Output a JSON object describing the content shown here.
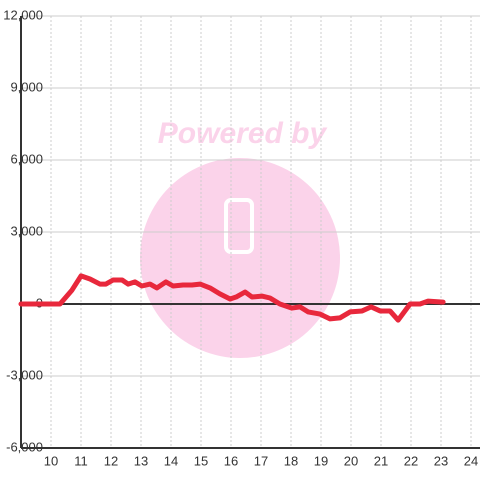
{
  "chart_data": {
    "type": "line",
    "watermark": "Powered by",
    "x": [
      9.0,
      10.3,
      10.7,
      11.0,
      11.3,
      11.63,
      11.83,
      12.07,
      12.37,
      12.57,
      12.8,
      13.03,
      13.3,
      13.53,
      13.83,
      14.07,
      14.4,
      14.7,
      14.97,
      15.3,
      15.63,
      15.97,
      16.17,
      16.47,
      16.7,
      17.03,
      17.3,
      17.63,
      18.03,
      18.3,
      18.57,
      18.97,
      19.3,
      19.63,
      19.97,
      20.37,
      20.67,
      20.97,
      21.3,
      21.57,
      21.97,
      22.3,
      22.57,
      23.07
    ],
    "series": [
      {
        "color": "#e8283c",
        "values": [
          0,
          0,
          580,
          1170,
          1040,
          830,
          830,
          1000,
          1000,
          830,
          920,
          750,
          830,
          670,
          920,
          750,
          790,
          790,
          830,
          670,
          420,
          210,
          290,
          500,
          290,
          330,
          250,
          0,
          -170,
          -120,
          -330,
          -420,
          -620,
          -580,
          -330,
          -290,
          -120,
          -290,
          -290,
          -670,
          0,
          0,
          120,
          80
        ]
      }
    ],
    "xlim": [
      9,
      24.3
    ],
    "xticks": [
      10,
      11,
      12,
      13,
      14,
      15,
      16,
      17,
      18,
      19,
      20,
      21,
      22,
      23,
      24
    ],
    "ylim": [
      -6000,
      12000
    ],
    "yticks": [
      {
        "value": -6000,
        "label": "-6,000"
      },
      {
        "value": -3000,
        "label": "-3,000"
      },
      0,
      {
        "value": 3000,
        "label": "3,000"
      },
      {
        "value": 6000,
        "label": "6,000"
      },
      {
        "value": 9000,
        "label": "9,000"
      },
      {
        "value": 12000,
        "label": "12,000"
      }
    ],
    "grid": true
  }
}
